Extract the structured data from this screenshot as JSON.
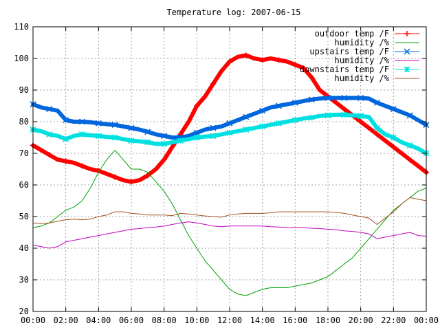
{
  "chart_data": {
    "type": "line",
    "title": "Temperature log: 2007-06-15",
    "xlabel": "",
    "ylabel": "",
    "xlim": [
      0,
      24
    ],
    "ylim": [
      20,
      110
    ],
    "grid": true,
    "legend_position": "top-right",
    "x_tick_labels": [
      "00:00",
      "02:00",
      "04:00",
      "06:00",
      "08:00",
      "10:00",
      "12:00",
      "14:00",
      "16:00",
      "18:00",
      "20:00",
      "22:00",
      "00:00"
    ],
    "y_tick_labels": [
      "20",
      "30",
      "40",
      "50",
      "60",
      "70",
      "80",
      "90",
      "100",
      "110"
    ],
    "series": [
      {
        "name": "outdoor temp /F",
        "color": "#ff0000",
        "marker": "plus",
        "x": [
          0,
          0.5,
          1,
          1.5,
          2,
          2.5,
          3,
          3.5,
          4,
          4.5,
          5,
          5.5,
          6,
          6.5,
          7,
          7.5,
          8,
          8.5,
          9,
          9.5,
          10,
          10.5,
          11,
          11.5,
          12,
          12.5,
          13,
          13.5,
          14,
          14.5,
          15,
          15.5,
          16,
          16.5,
          17,
          17.5,
          18,
          18.5,
          19,
          19.5,
          20,
          20.5,
          21,
          21.5,
          22,
          22.5,
          23,
          23.5,
          24
        ],
        "y": [
          72.5,
          71,
          69.5,
          68,
          67.5,
          67,
          66,
          65,
          64.5,
          63.5,
          62.5,
          61.5,
          61,
          61.5,
          63,
          65,
          68,
          72,
          76,
          80,
          85,
          88,
          92,
          96,
          99,
          100.5,
          101,
          100,
          99.5,
          100,
          99.5,
          99,
          98,
          97,
          94,
          90,
          88,
          86,
          84,
          82,
          80,
          78,
          76,
          74,
          72,
          70,
          68,
          66,
          64
        ]
      },
      {
        "name": "humidity /%",
        "color": "#00a000",
        "marker": "none",
        "x": [
          0,
          0.5,
          1,
          1.5,
          2,
          2.5,
          3,
          3.5,
          4,
          4.5,
          5,
          5.5,
          6,
          6.5,
          7,
          7.5,
          8,
          8.5,
          9,
          9.5,
          10,
          10.5,
          11,
          11.5,
          12,
          12.5,
          13,
          13.5,
          14,
          14.5,
          15,
          15.5,
          16,
          16.5,
          17,
          17.5,
          18,
          18.5,
          19,
          19.5,
          20,
          20.5,
          21,
          21.5,
          22,
          22.5,
          23,
          23.5,
          24
        ],
        "y": [
          46.5,
          47,
          48,
          50,
          52,
          53,
          55,
          59,
          64,
          68,
          71,
          68,
          65,
          65,
          64,
          61,
          58,
          54,
          49,
          44,
          40,
          36,
          33,
          30,
          27,
          25.5,
          25,
          26,
          27,
          27.5,
          27.5,
          27.5,
          28,
          28.5,
          29,
          30,
          31,
          33,
          35,
          37,
          40,
          43,
          46,
          49,
          52,
          54,
          56,
          58,
          59
        ]
      },
      {
        "name": "upstairs temp /F",
        "color": "#0066dd",
        "marker": "x",
        "x": [
          0,
          0.5,
          1,
          1.5,
          2,
          2.5,
          3,
          3.5,
          4,
          4.5,
          5,
          5.5,
          6,
          6.5,
          7,
          7.5,
          8,
          8.5,
          9,
          9.5,
          10,
          10.5,
          11,
          11.5,
          12,
          12.5,
          13,
          13.5,
          14,
          14.5,
          15,
          15.5,
          16,
          16.5,
          17,
          17.5,
          18,
          18.5,
          19,
          19.5,
          20,
          20.5,
          21,
          21.5,
          22,
          22.5,
          23,
          23.5,
          24
        ],
        "y": [
          85.5,
          84.5,
          84,
          83.5,
          80.5,
          80,
          80,
          79.8,
          79.5,
          79.2,
          79,
          78.5,
          78,
          77.5,
          76.8,
          76,
          75.5,
          75,
          75,
          75.5,
          76.5,
          77.5,
          78,
          78.5,
          79.5,
          80.5,
          81.5,
          82.5,
          83.5,
          84.5,
          85,
          85.5,
          86,
          86.5,
          87,
          87.3,
          87.5,
          87.5,
          87.5,
          87.5,
          87.5,
          87.3,
          86,
          85,
          84,
          83,
          82,
          80.5,
          79
        ]
      },
      {
        "name": "humidity /%",
        "color": "#c000c0",
        "marker": "none",
        "x": [
          0,
          0.5,
          1,
          1.5,
          2,
          2.5,
          3,
          3.5,
          4,
          4.5,
          5,
          5.5,
          6,
          6.5,
          7,
          7.5,
          8,
          8.5,
          9,
          9.5,
          10,
          10.5,
          11,
          11.5,
          12,
          12.5,
          13,
          13.5,
          14,
          14.5,
          15,
          15.5,
          16,
          16.5,
          17,
          17.5,
          18,
          18.5,
          19,
          19.5,
          20,
          20.5,
          21,
          21.5,
          22,
          22.5,
          23,
          23.5,
          24
        ],
        "y": [
          41,
          40.5,
          40,
          40.5,
          42,
          42.5,
          43,
          43.5,
          44,
          44.5,
          45,
          45.5,
          46,
          46.2,
          46.5,
          46.7,
          47,
          47.5,
          48,
          48.3,
          48,
          47.5,
          47,
          46.8,
          47,
          47,
          47,
          47,
          47,
          46.8,
          46.7,
          46.5,
          46.5,
          46.5,
          46.3,
          46.2,
          46,
          45.8,
          45.5,
          45.3,
          45,
          44.5,
          43,
          43.5,
          44,
          44.5,
          45,
          44,
          43.8
        ]
      },
      {
        "name": "downstairs temp /F",
        "color": "#00e0e0",
        "marker": "star",
        "x": [
          0,
          0.5,
          1,
          1.5,
          2,
          2.5,
          3,
          3.5,
          4,
          4.5,
          5,
          5.5,
          6,
          6.5,
          7,
          7.5,
          8,
          8.5,
          9,
          9.5,
          10,
          10.5,
          11,
          11.5,
          12,
          12.5,
          13,
          13.5,
          14,
          14.5,
          15,
          15.5,
          16,
          16.5,
          17,
          17.5,
          18,
          18.5,
          19,
          19.5,
          20,
          20.5,
          21,
          21.5,
          22,
          22.5,
          23,
          23.5,
          24
        ],
        "y": [
          77.5,
          77,
          76,
          75.5,
          74.5,
          75.5,
          76,
          75.7,
          75.5,
          75.2,
          75,
          74.5,
          74,
          73.8,
          73.5,
          73,
          73,
          73.5,
          74,
          74.5,
          75,
          75.3,
          75.5,
          76,
          76.5,
          77,
          77.5,
          78,
          78.5,
          79,
          79.5,
          80,
          80.5,
          81,
          81.3,
          81.8,
          82,
          82.2,
          82.2,
          82,
          81.8,
          81.5,
          78,
          76,
          75,
          73.5,
          72.5,
          71.5,
          70
        ]
      },
      {
        "name": "humidity /%",
        "color": "#a05020",
        "marker": "none",
        "x": [
          0,
          0.5,
          1,
          1.5,
          2,
          2.5,
          3,
          3.5,
          4,
          4.5,
          5,
          5.5,
          6,
          6.5,
          7,
          7.5,
          8,
          8.5,
          9,
          9.5,
          10,
          10.5,
          11,
          11.5,
          12,
          12.5,
          13,
          13.5,
          14,
          14.5,
          15,
          15.5,
          16,
          16.5,
          17,
          17.5,
          18,
          18.5,
          19,
          19.5,
          20,
          20.5,
          21,
          21.5,
          22,
          22.5,
          23,
          23.5,
          24
        ],
        "y": [
          48,
          47.8,
          48,
          48.5,
          49,
          49.2,
          49,
          49.2,
          50,
          50.5,
          51.5,
          51.5,
          51,
          50.8,
          50.5,
          50.5,
          50.5,
          50.3,
          51,
          50.8,
          50.5,
          50.2,
          50,
          49.8,
          50.5,
          50.8,
          51,
          51,
          51,
          51.2,
          51.5,
          51.5,
          51.5,
          51.5,
          51.5,
          51.5,
          51.5,
          51.3,
          51,
          50.5,
          50,
          49.5,
          47.5,
          49.5,
          51.5,
          54,
          56,
          55.5,
          55
        ]
      }
    ]
  }
}
